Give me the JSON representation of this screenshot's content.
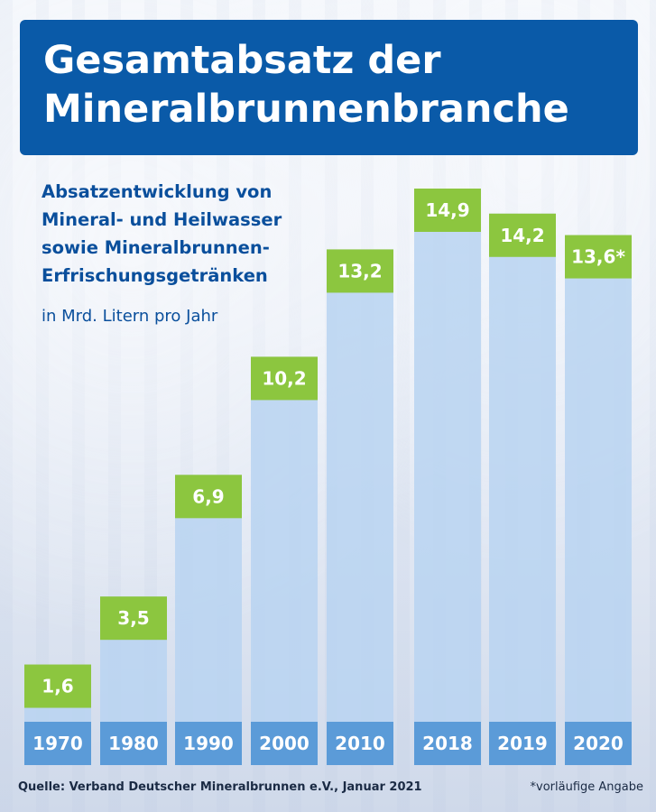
{
  "title": "Gesamtabsatz der Mineralbrunnenbranche",
  "title_lines": [
    "Gesamtabsatz der",
    "Mineralbrunnenbranche"
  ],
  "subtitle_lines": [
    "Absatzentwicklung von",
    "Mineral- und Heilwasser",
    "sowie Mineralbrunnen-",
    "Erfrischungsgetränken"
  ],
  "unit": "in Mrd. Litern pro Jahr",
  "source": "Quelle: Verband Deutscher Mineralbrunnen e.V., Januar 2021",
  "footnote": "*vorläufige Angabe",
  "colors": {
    "title_bg": "#0a5aa8",
    "bar_fill": "#b8d3f1",
    "label_bg": "#8cc63f",
    "year_bg": "#5b9bd8",
    "text_blue": "#0a4f9c"
  },
  "chart_data": {
    "type": "bar",
    "categories": [
      "1970",
      "1980",
      "1990",
      "2000",
      "2010",
      "2018",
      "2019",
      "2020"
    ],
    "values": [
      1.6,
      3.5,
      6.9,
      10.2,
      13.2,
      14.9,
      14.2,
      13.6
    ],
    "data_labels": [
      "1,6",
      "3,5",
      "6,9",
      "10,2",
      "13,2",
      "14,9",
      "14,2",
      "13,6*"
    ],
    "ylim": [
      0,
      14.9
    ]
  }
}
